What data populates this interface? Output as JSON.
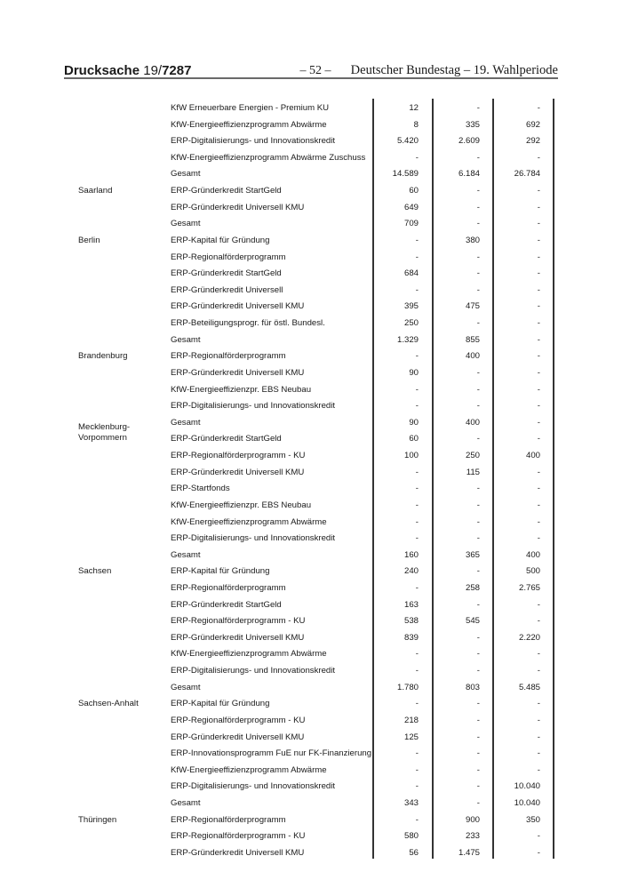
{
  "header": {
    "doc_label": "Drucksache",
    "doc_number_prefix": "19/",
    "doc_number": "7287",
    "page": "– 52 –",
    "publisher": "Deutscher Bundestag – 19. Wahlperiode"
  },
  "table": {
    "rows": [
      [
        "",
        "KfW Erneuerbare Energien - Premium KU",
        "12",
        "-",
        "-"
      ],
      [
        "",
        "KfW-Energieeffizienzprogramm Abwärme",
        "8",
        "335",
        "692"
      ],
      [
        "",
        "ERP-Digitalisierungs- und Innovationskredit",
        "5.420",
        "2.609",
        "292"
      ],
      [
        "",
        "KfW-Energieeffizienzprogramm Abwärme Zuschuss",
        "-",
        "-",
        "-"
      ],
      [
        "",
        "Gesamt",
        "14.589",
        "6.184",
        "26.784"
      ],
      [
        "Saarland",
        "ERP-Gründerkredit StartGeld",
        "60",
        "-",
        "-"
      ],
      [
        "",
        "ERP-Gründerkredit Universell KMU",
        "649",
        "-",
        "-"
      ],
      [
        "",
        "Gesamt",
        "709",
        "-",
        "-"
      ],
      [
        "Berlin",
        "ERP-Kapital für Gründung",
        "-",
        "380",
        "-"
      ],
      [
        "",
        "ERP-Regionalförderprogramm",
        "-",
        "-",
        "-"
      ],
      [
        "",
        "ERP-Gründerkredit StartGeld",
        "684",
        "-",
        "-"
      ],
      [
        "",
        "ERP-Gründerkredit Universell",
        "-",
        "-",
        "-"
      ],
      [
        "",
        "ERP-Gründerkredit Universell KMU",
        "395",
        "475",
        "-"
      ],
      [
        "",
        "ERP-Beteiligungsprogr. für östl. Bundesl.",
        "250",
        "-",
        "-"
      ],
      [
        "",
        "Gesamt",
        "1.329",
        "855",
        "-"
      ],
      [
        "Brandenburg",
        "ERP-Regionalförderprogramm",
        "-",
        "400",
        "-"
      ],
      [
        "",
        "ERP-Gründerkredit Universell KMU",
        "90",
        "-",
        "-"
      ],
      [
        "",
        "KfW-Energieeffizienzpr. EBS Neubau",
        "-",
        "-",
        "-"
      ],
      [
        "",
        "ERP-Digitalisierungs- und Innovationskredit",
        "-",
        "-",
        "-"
      ],
      [
        "",
        "Gesamt",
        "90",
        "400",
        "-"
      ],
      [
        "Mecklenburg-\nVorpommern",
        "ERP-Gründerkredit StartGeld",
        "60",
        "-",
        "-"
      ],
      [
        "",
        "ERP-Regionalförderprogramm - KU",
        "100",
        "250",
        "400"
      ],
      [
        "",
        "ERP-Gründerkredit Universell KMU",
        "-",
        "115",
        "-"
      ],
      [
        "",
        "ERP-Startfonds",
        "-",
        "-",
        "-"
      ],
      [
        "",
        "KfW-Energieeffizienzpr. EBS Neubau",
        "-",
        "-",
        "-"
      ],
      [
        "",
        "KfW-Energieeffizienzprogramm Abwärme",
        "-",
        "-",
        "-"
      ],
      [
        "",
        "ERP-Digitalisierungs- und Innovationskredit",
        "-",
        "-",
        "-"
      ],
      [
        "",
        "Gesamt",
        "160",
        "365",
        "400"
      ],
      [
        "Sachsen",
        "ERP-Kapital für Gründung",
        "240",
        "-",
        "500"
      ],
      [
        "",
        "ERP-Regionalförderprogramm",
        "-",
        "258",
        "2.765"
      ],
      [
        "",
        "ERP-Gründerkredit StartGeld",
        "163",
        "-",
        "-"
      ],
      [
        "",
        "ERP-Regionalförderprogramm - KU",
        "538",
        "545",
        "-"
      ],
      [
        "",
        "ERP-Gründerkredit Universell KMU",
        "839",
        "-",
        "2.220"
      ],
      [
        "",
        "KfW-Energieeffizienzprogramm Abwärme",
        "-",
        "-",
        "-"
      ],
      [
        "",
        "ERP-Digitalisierungs- und Innovationskredit",
        "-",
        "-",
        "-"
      ],
      [
        "",
        "Gesamt",
        "1.780",
        "803",
        "5.485"
      ],
      [
        "Sachsen-Anhalt",
        "ERP-Kapital für Gründung",
        "-",
        "-",
        "-"
      ],
      [
        "",
        "ERP-Regionalförderprogramm - KU",
        "218",
        "-",
        "-"
      ],
      [
        "",
        "ERP-Gründerkredit Universell KMU",
        "125",
        "-",
        "-"
      ],
      [
        "",
        "ERP-Innovationsprogramm FuE nur FK-Finanzierung",
        "-",
        "-",
        "-"
      ],
      [
        "",
        "KfW-Energieeffizienzprogramm Abwärme",
        "-",
        "-",
        "-"
      ],
      [
        "",
        "ERP-Digitalisierungs- und Innovationskredit",
        "-",
        "-",
        "10.040"
      ],
      [
        "",
        "Gesamt",
        "343",
        "-",
        "10.040"
      ],
      [
        "Thüringen",
        "ERP-Regionalförderprogramm",
        "-",
        "900",
        "350"
      ],
      [
        "",
        "ERP-Regionalförderprogramm - KU",
        "580",
        "233",
        "-"
      ],
      [
        "",
        "ERP-Gründerkredit Universell KMU",
        "56",
        "1.475",
        "-"
      ]
    ]
  }
}
